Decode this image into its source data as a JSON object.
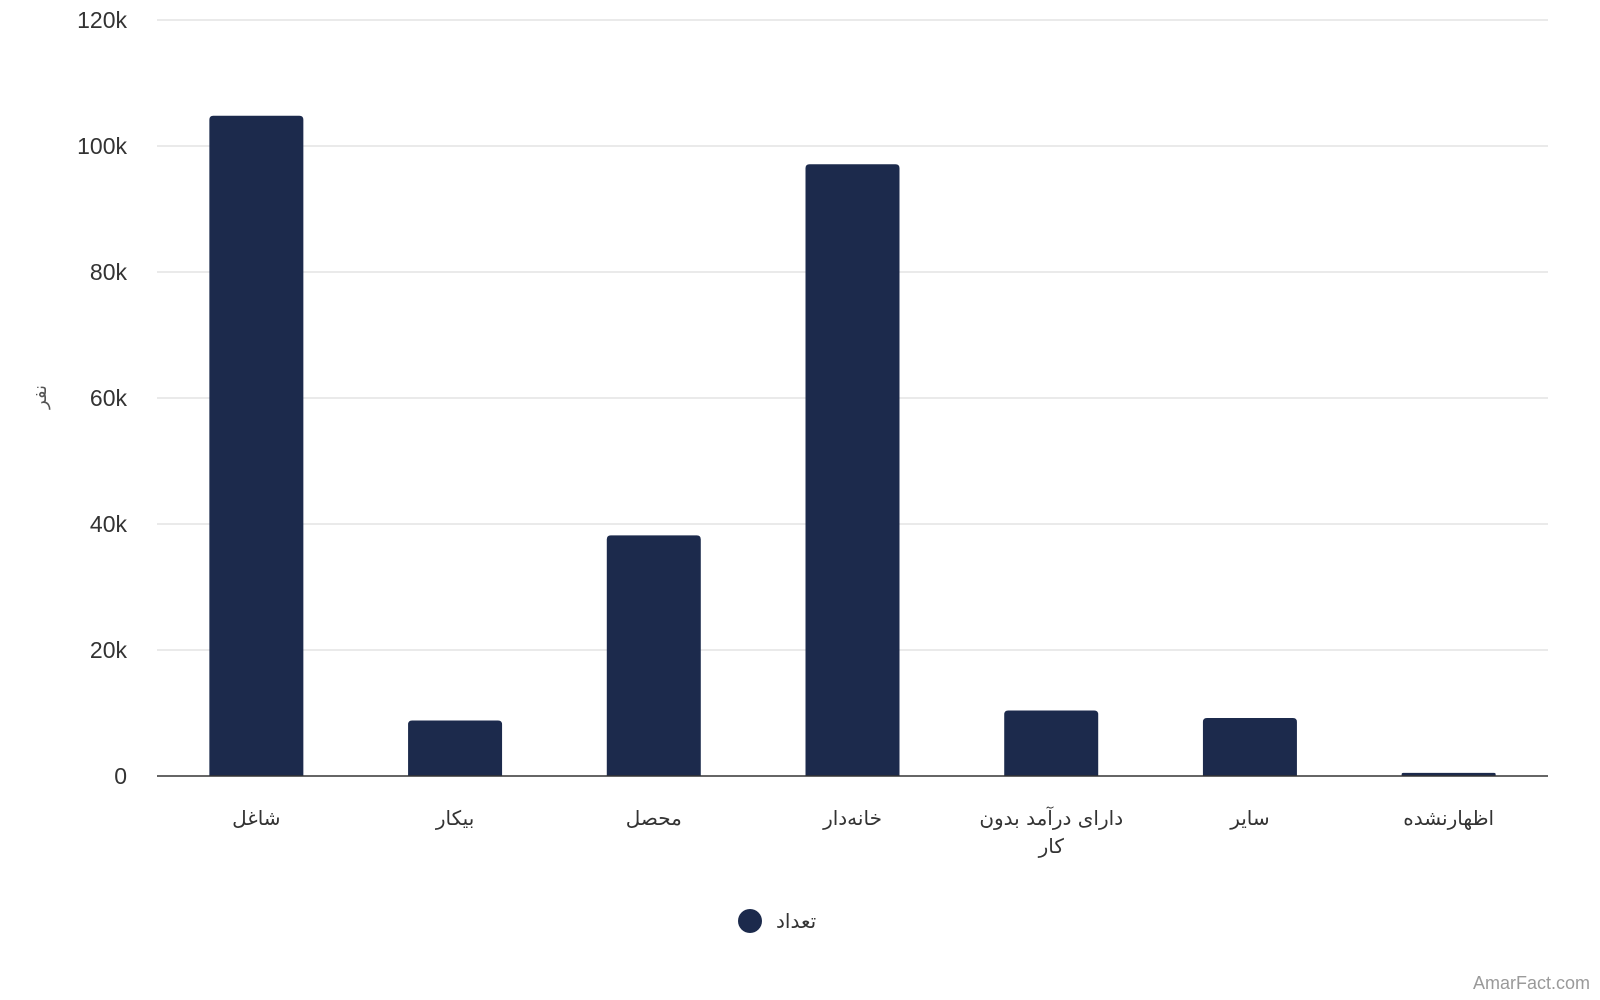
{
  "chart_data": {
    "type": "bar",
    "title": "",
    "xlabel": "",
    "ylabel": "نفر",
    "categories": [
      "شاغل",
      "بیکار",
      "محصل",
      "خانه‌دار",
      "دارای درآمد بدون کار",
      "سایر",
      "اظهارنشده"
    ],
    "series": [
      {
        "name": "تعداد",
        "color": "#1c2a4c",
        "values": [
          104800,
          8800,
          38200,
          97100,
          10400,
          9200,
          500
        ]
      }
    ],
    "ylim": [
      0,
      120000
    ],
    "yticks": [
      0,
      20000,
      40000,
      60000,
      80000,
      100000,
      120000
    ],
    "ytick_labels": [
      "0",
      "20k",
      "40k",
      "60k",
      "80k",
      "100k",
      "120k"
    ],
    "grid": true,
    "legend": "bottom-center"
  },
  "credit": "AmarFact.com"
}
